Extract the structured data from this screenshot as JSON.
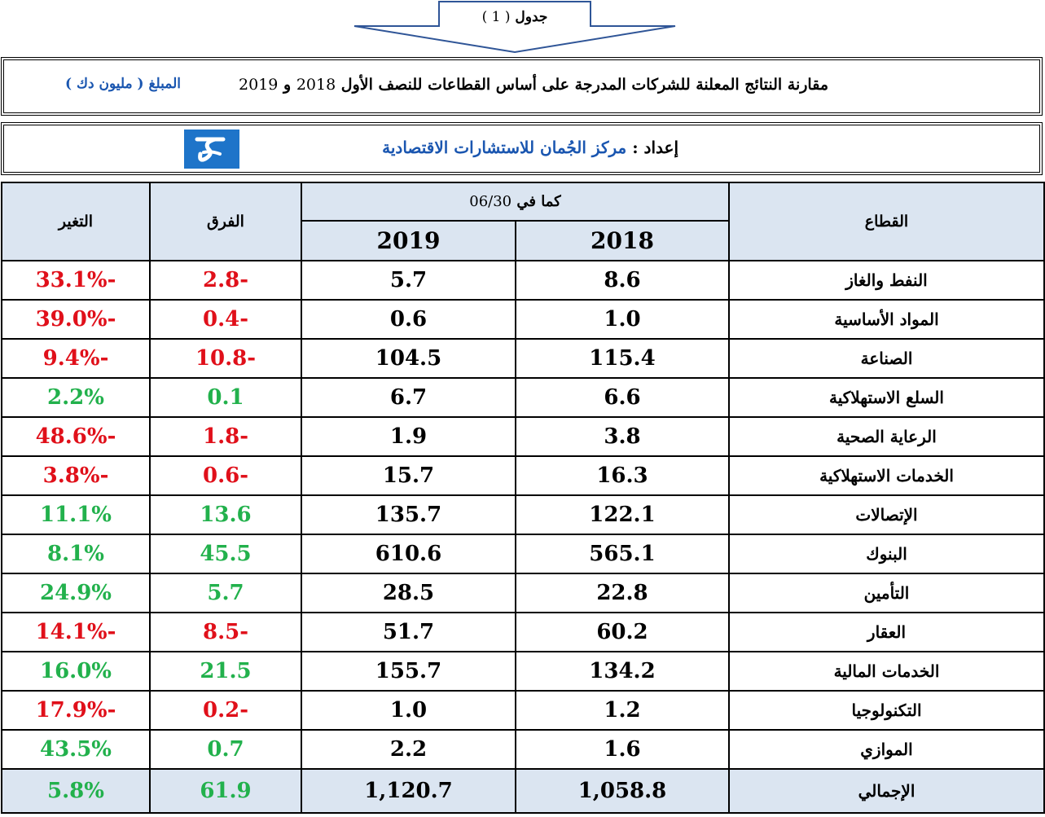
{
  "banner": {
    "label": "جدول",
    "number": "( 1 )"
  },
  "title": {
    "text": "مقارنة النتائج المعلنة للشركات المدرجة على أساس القطاعات للنصف الأول",
    "year1": "2018",
    "conj": "و",
    "year2": "2019",
    "amount_label": "المبلغ",
    "amount_unit": "( مليون دك )"
  },
  "prepared": {
    "label": "إعداد",
    "separator": ":",
    "org": "مركز الجُمان للاستشارات الاقتصادية",
    "logo_icon": "aljuman-logo-icon"
  },
  "table": {
    "headers": {
      "sector": "القطاع",
      "asof_label": "كما في",
      "asof_date": "06/30",
      "year1": "2018",
      "year2": "2019",
      "diff": "الفرق",
      "change": "التغير"
    },
    "rows": [
      {
        "sector": "النفط والغاز",
        "v2018": "8.6",
        "v2019": "5.7",
        "diff": "-2.8",
        "change": "-33.1%",
        "sign": "neg"
      },
      {
        "sector": "المواد الأساسية",
        "v2018": "1.0",
        "v2019": "0.6",
        "diff": "-0.4",
        "change": "-39.0%",
        "sign": "neg"
      },
      {
        "sector": "الصناعة",
        "v2018": "115.4",
        "v2019": "104.5",
        "diff": "-10.8",
        "change": "-9.4%",
        "sign": "neg"
      },
      {
        "sector": "السلع الاستهلاكية",
        "v2018": "6.6",
        "v2019": "6.7",
        "diff": "0.1",
        "change": "2.2%",
        "sign": "pos"
      },
      {
        "sector": "الرعاية الصحية",
        "v2018": "3.8",
        "v2019": "1.9",
        "diff": "-1.8",
        "change": "-48.6%",
        "sign": "neg"
      },
      {
        "sector": "الخدمات الاستهلاكية",
        "v2018": "16.3",
        "v2019": "15.7",
        "diff": "-0.6",
        "change": "-3.8%",
        "sign": "neg"
      },
      {
        "sector": "الإتصالات",
        "v2018": "122.1",
        "v2019": "135.7",
        "diff": "13.6",
        "change": "11.1%",
        "sign": "pos"
      },
      {
        "sector": "البنوك",
        "v2018": "565.1",
        "v2019": "610.6",
        "diff": "45.5",
        "change": "8.1%",
        "sign": "pos"
      },
      {
        "sector": "التأمين",
        "v2018": "22.8",
        "v2019": "28.5",
        "diff": "5.7",
        "change": "24.9%",
        "sign": "pos"
      },
      {
        "sector": "العقار",
        "v2018": "60.2",
        "v2019": "51.7",
        "diff": "-8.5",
        "change": "-14.1%",
        "sign": "neg"
      },
      {
        "sector": "الخدمات المالية",
        "v2018": "134.2",
        "v2019": "155.7",
        "diff": "21.5",
        "change": "16.0%",
        "sign": "pos"
      },
      {
        "sector": "التكنولوجيا",
        "v2018": "1.2",
        "v2019": "1.0",
        "diff": "-0.2",
        "change": "-17.9%",
        "sign": "neg"
      },
      {
        "sector": "الموازي",
        "v2018": "1.6",
        "v2019": "2.2",
        "diff": "0.7",
        "change": "43.5%",
        "sign": "pos"
      }
    ],
    "total": {
      "sector": "الإجمالي",
      "v2018": "1,058.8",
      "v2019": "1,120.7",
      "diff": "61.9",
      "change": "5.8%",
      "sign": "pos"
    }
  },
  "colors": {
    "header_bg": "#dbe5f1",
    "negative": "#e0101a",
    "positive": "#22b14c",
    "accent_blue": "#1a56b0"
  }
}
